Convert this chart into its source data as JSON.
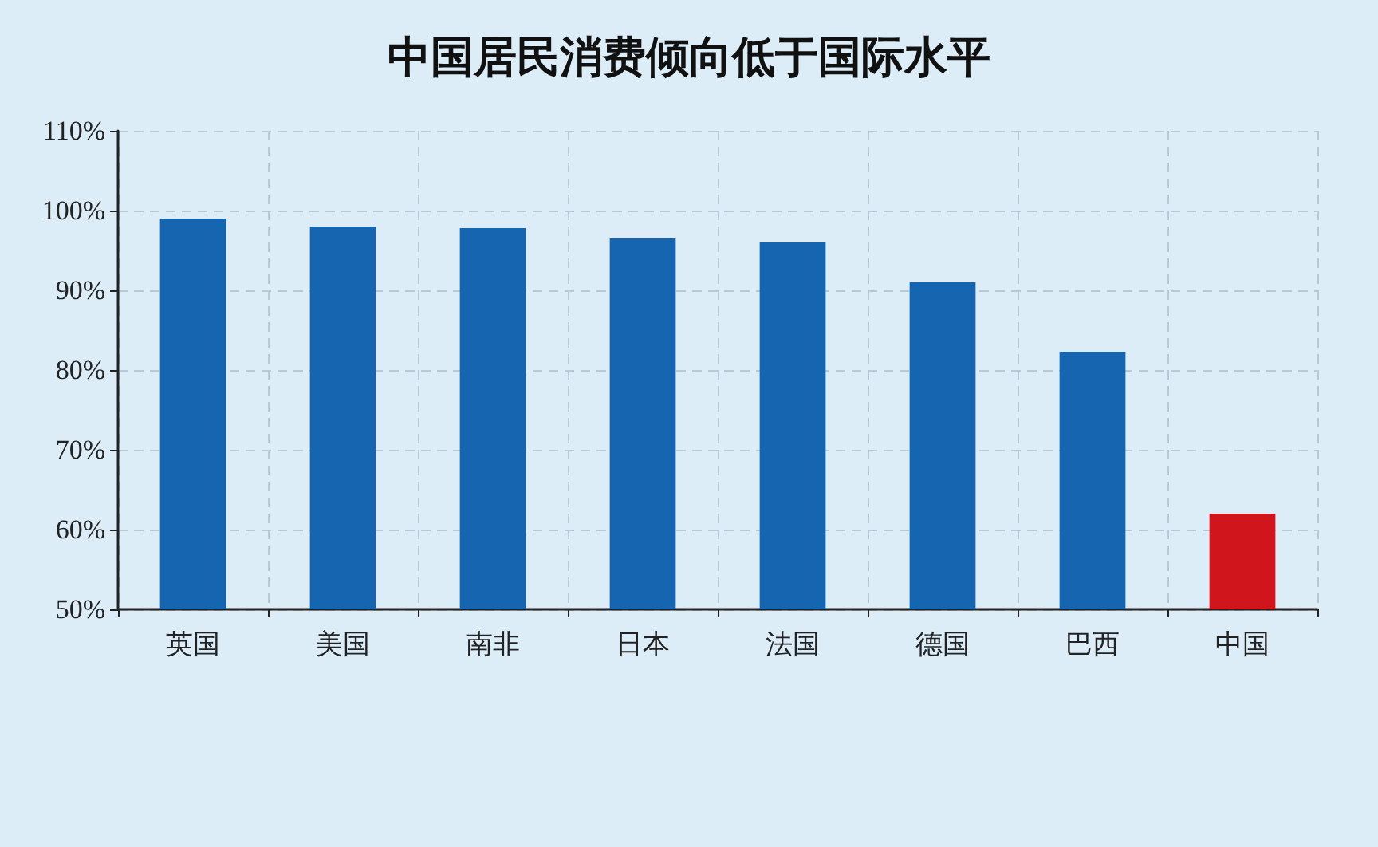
{
  "chart_data": {
    "type": "bar",
    "title": "中国居民消费倾向低于国际水平",
    "categories": [
      "英国",
      "美国",
      "南非",
      "日本",
      "法国",
      "德国",
      "巴西",
      "中国"
    ],
    "values": [
      99,
      98,
      97.8,
      96.5,
      96,
      91,
      82.3,
      62
    ],
    "colors": [
      "#1565b0",
      "#1565b0",
      "#1565b0",
      "#1565b0",
      "#1565b0",
      "#1565b0",
      "#1565b0",
      "#d0161c"
    ],
    "ylim": [
      50,
      110
    ],
    "yticks": [
      {
        "value": 50,
        "label": "50%"
      },
      {
        "value": 60,
        "label": "60%"
      },
      {
        "value": 70,
        "label": "70%"
      },
      {
        "value": 80,
        "label": "80%"
      },
      {
        "value": 90,
        "label": "90%"
      },
      {
        "value": 100,
        "label": "100%"
      },
      {
        "value": 110,
        "label": "110%"
      }
    ],
    "grid": true
  }
}
